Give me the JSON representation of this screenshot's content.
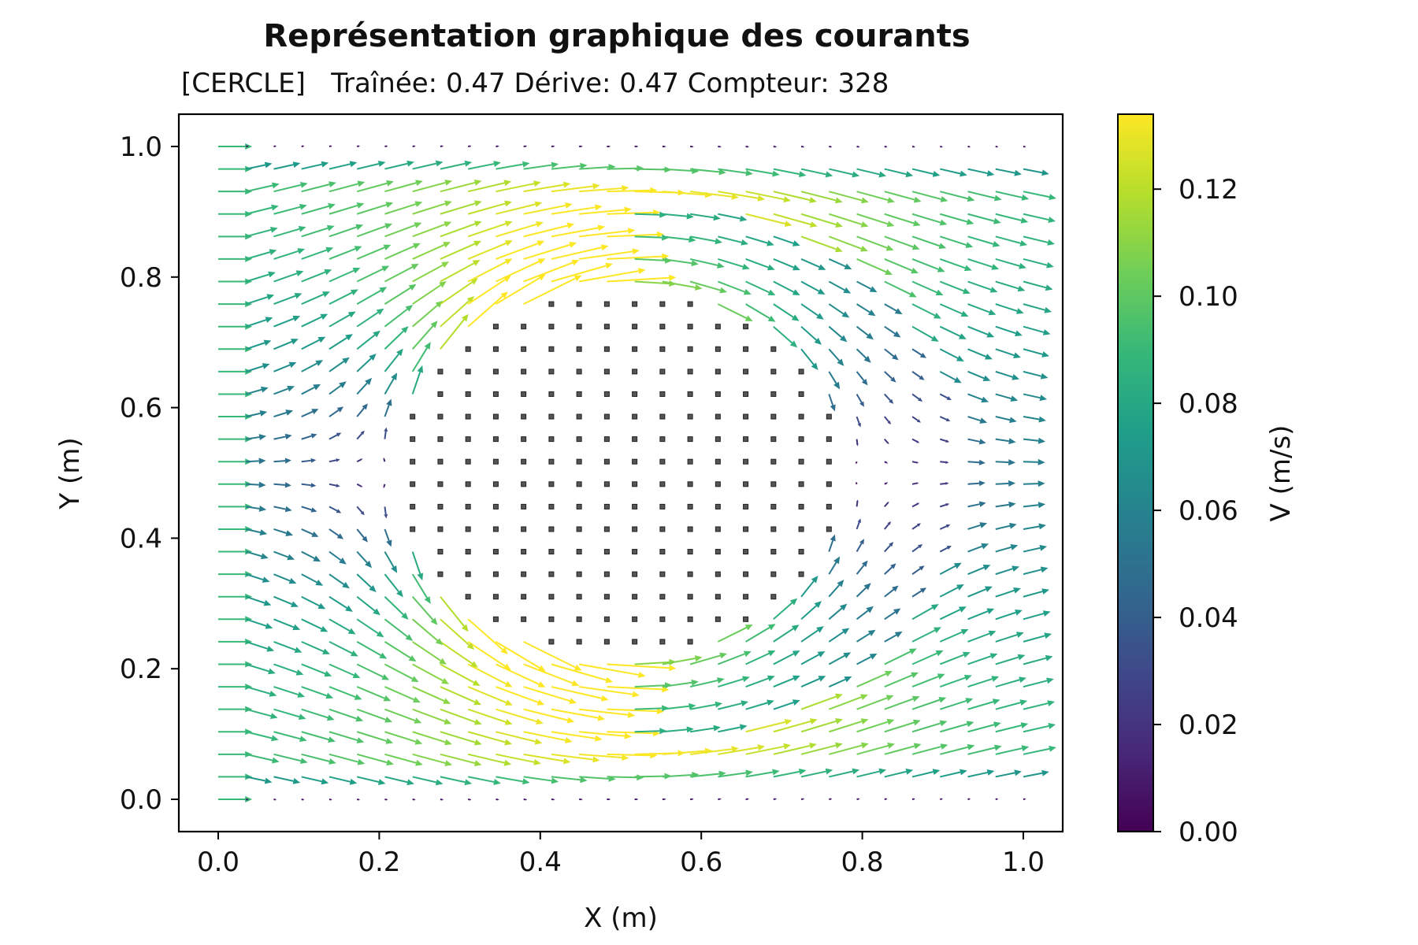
{
  "chart_data": {
    "type": "quiver",
    "title": "Représentation graphique des courants",
    "subtitle": "[CERCLE]   Traînée: 0.47 Dérive: 0.47 Compteur: 328",
    "xlabel": "X (m)",
    "ylabel": "Y (m)",
    "xlim": [
      -0.05,
      1.05
    ],
    "ylim": [
      -0.05,
      1.05
    ],
    "xticks": [
      "0.0",
      "0.2",
      "0.4",
      "0.6",
      "0.8",
      "1.0"
    ],
    "yticks": [
      "0.0",
      "0.2",
      "0.4",
      "0.6",
      "0.8",
      "1.0"
    ],
    "grid": false,
    "grid_points": {
      "x_start": 0.0,
      "x_end": 1.0,
      "x_count": 30,
      "y_start": 0.0,
      "y_end": 1.0,
      "y_count": 30
    },
    "inlet_velocity": 0.09,
    "obstacle": {
      "shape": "circle",
      "center": [
        0.5,
        0.5
      ],
      "radius": 0.3
    },
    "colorbar": {
      "label": "V (m/s)",
      "min": 0.0,
      "max": 0.134,
      "ticks": [
        "0.00",
        "0.02",
        "0.04",
        "0.06",
        "0.08",
        "0.10",
        "0.12"
      ],
      "colormap": "viridis"
    },
    "colors": {
      "axis": "#000000",
      "obstacle_marker": "#555555",
      "viridis": [
        "#440154",
        "#482878",
        "#3e4989",
        "#31688e",
        "#26828e",
        "#1f9e89",
        "#35b779",
        "#6ece58",
        "#b5de2b",
        "#fde725"
      ]
    }
  }
}
